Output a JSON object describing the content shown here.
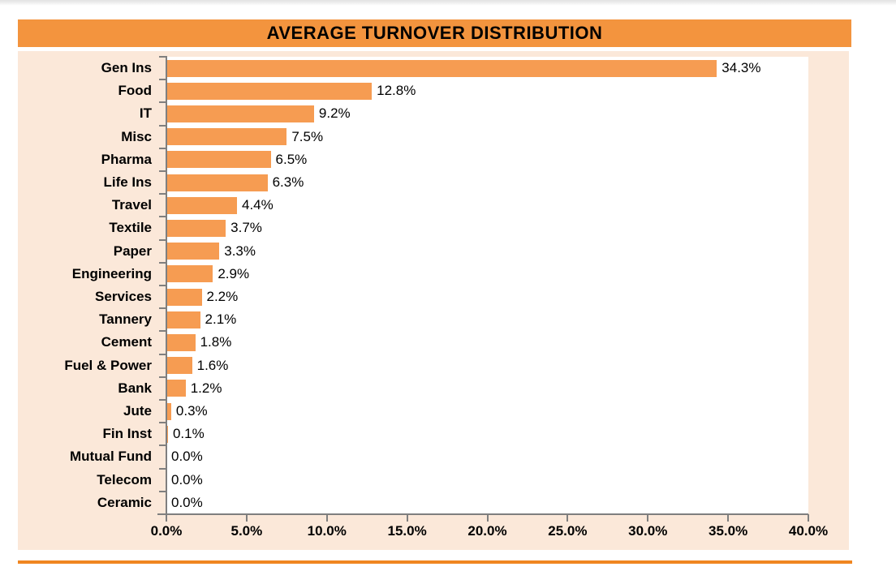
{
  "title_bar": {
    "label": "AVERAGE TURNOVER DISTRIBUTION"
  },
  "chart_data": {
    "type": "bar",
    "orientation": "horizontal",
    "title": "AVERAGE TURNOVER DISTRIBUTION",
    "categories": [
      "Gen Ins",
      "Food",
      "IT",
      "Misc",
      "Pharma",
      "Life Ins",
      "Travel",
      "Textile",
      "Paper",
      "Engineering",
      "Services",
      "Tannery",
      "Cement",
      "Fuel & Power",
      "Bank",
      "Jute",
      "Fin Inst",
      "Mutual Fund",
      "Telecom",
      "Ceramic"
    ],
    "values": [
      34.3,
      12.8,
      9.2,
      7.5,
      6.5,
      6.3,
      4.4,
      3.7,
      3.3,
      2.9,
      2.2,
      2.1,
      1.8,
      1.6,
      1.2,
      0.3,
      0.1,
      0.0,
      0.0,
      0.0
    ],
    "value_labels": [
      "34.3%",
      "12.8%",
      "9.2%",
      "7.5%",
      "6.5%",
      "6.3%",
      "4.4%",
      "3.7%",
      "3.3%",
      "2.9%",
      "2.2%",
      "2.1%",
      "1.8%",
      "1.6%",
      "1.2%",
      "0.3%",
      "0.1%",
      "0.0%",
      "0.0%",
      "0.0%"
    ],
    "xlabel": "",
    "ylabel": "",
    "xlim": [
      0,
      40
    ],
    "x_tick_step": 5,
    "x_ticks": [
      "0.0%",
      "5.0%",
      "10.0%",
      "15.0%",
      "20.0%",
      "25.0%",
      "30.0%",
      "35.0%",
      "40.0%"
    ],
    "grid": false,
    "data_labels": true,
    "legend": "none"
  },
  "colors": {
    "title_bar": "#F3943E",
    "bar": "#F69C52",
    "chart_bg": "#FBE8D9",
    "plot_bg": "#FFFFFF",
    "axis": "#7F7F7F",
    "bottom_rule": "#F08621",
    "text": "#000000"
  }
}
